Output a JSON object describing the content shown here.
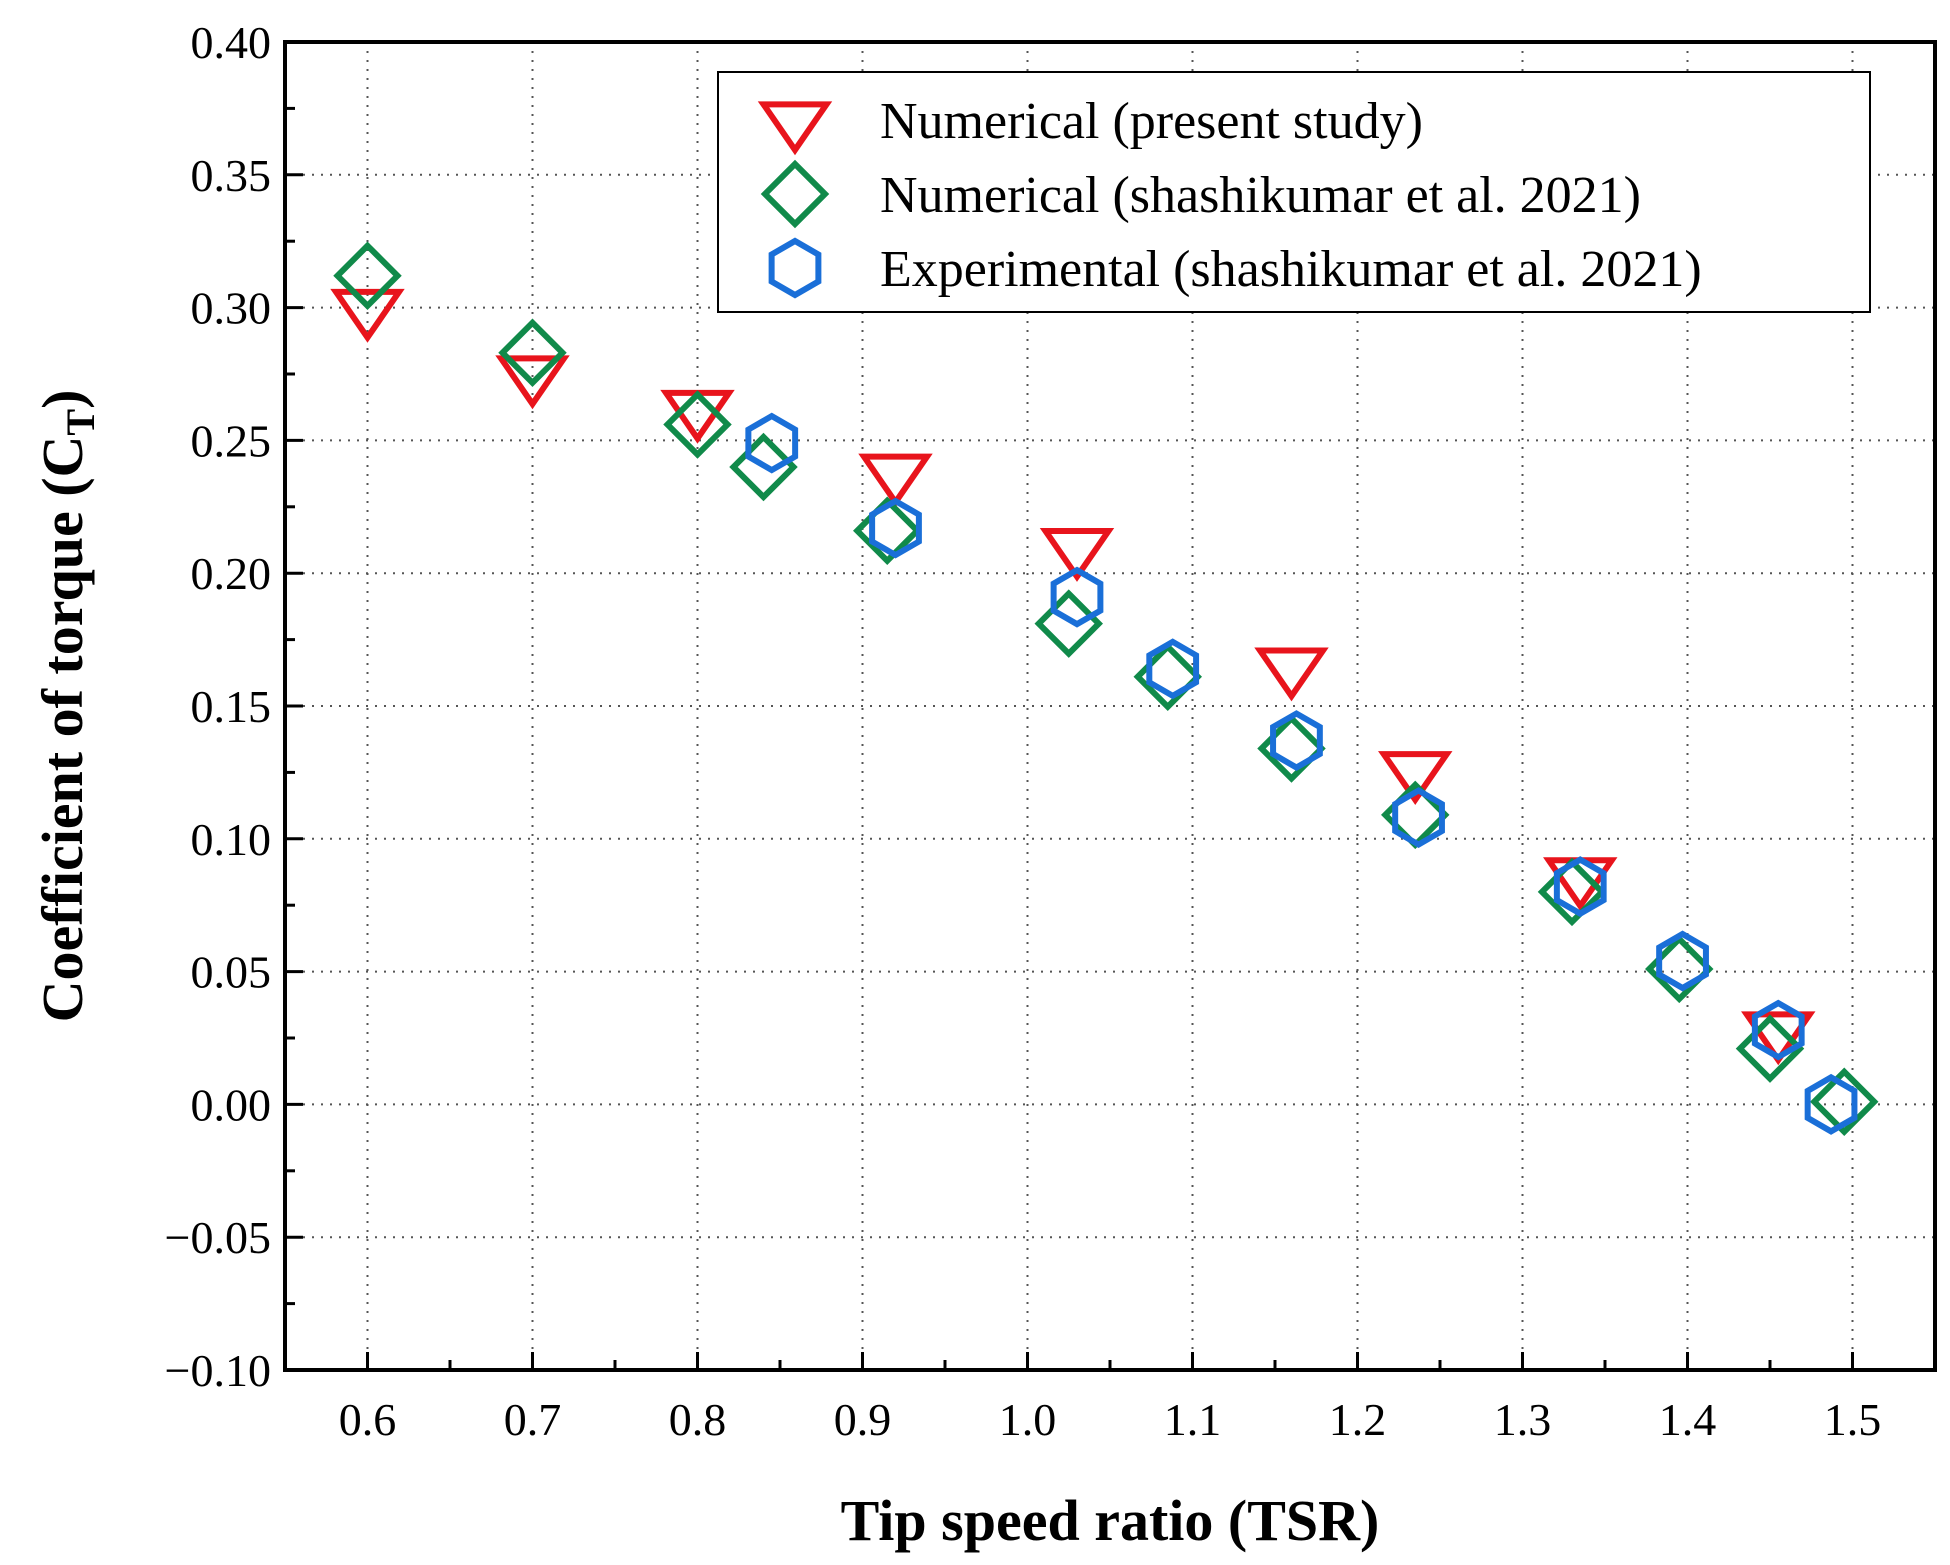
{
  "chart_data": {
    "type": "scatter",
    "xlabel": "Tip speed ratio (TSR)",
    "ylabel": "Coefficient of torque (C",
    "ylabel_sub": "T",
    "ylabel_close": ")",
    "xlim": [
      0.55,
      1.55
    ],
    "ylim": [
      -0.1,
      0.4
    ],
    "xticks": [
      0.6,
      0.7,
      0.8,
      0.9,
      1.0,
      1.1,
      1.2,
      1.3,
      1.4,
      1.5
    ],
    "xtick_labels": [
      "0.6",
      "0.7",
      "0.8",
      "0.9",
      "1.0",
      "1.1",
      "1.2",
      "1.3",
      "1.4",
      "1.5"
    ],
    "yticks": [
      -0.1,
      -0.05,
      0.0,
      0.05,
      0.1,
      0.15,
      0.2,
      0.25,
      0.3,
      0.35,
      0.4
    ],
    "ytick_labels": [
      "−0.10",
      "−0.05",
      "0.00",
      "0.05",
      "0.10",
      "0.15",
      "0.20",
      "0.25",
      "0.30",
      "0.35",
      "0.40"
    ],
    "grid": true,
    "legend_position": "top-right",
    "series": [
      {
        "name": "Numerical (present study)",
        "marker": "triangle-down",
        "color": "#e8141c",
        "x": [
          0.6,
          0.7,
          0.8,
          0.92,
          1.03,
          1.16,
          1.235,
          1.335,
          1.455
        ],
        "y": [
          0.3,
          0.275,
          0.262,
          0.238,
          0.21,
          0.165,
          0.126,
          0.086,
          0.028
        ]
      },
      {
        "name": "Numerical (shashikumar et al. 2021)",
        "marker": "diamond",
        "color": "#108a4a",
        "x": [
          0.6,
          0.7,
          0.8,
          0.84,
          0.915,
          1.025,
          1.085,
          1.16,
          1.235,
          1.33,
          1.395,
          1.45,
          1.495
        ],
        "y": [
          0.312,
          0.283,
          0.256,
          0.24,
          0.216,
          0.181,
          0.161,
          0.134,
          0.109,
          0.08,
          0.051,
          0.021,
          0.001
        ]
      },
      {
        "name": "Experimental (shashikumar et al. 2021)",
        "marker": "hexagon",
        "color": "#1a6fd8",
        "x": [
          0.845,
          0.92,
          1.03,
          1.088,
          1.163,
          1.237,
          1.335,
          1.397,
          1.455,
          1.487
        ],
        "y": [
          0.249,
          0.217,
          0.191,
          0.164,
          0.137,
          0.108,
          0.082,
          0.054,
          0.028,
          0.0
        ]
      }
    ]
  }
}
